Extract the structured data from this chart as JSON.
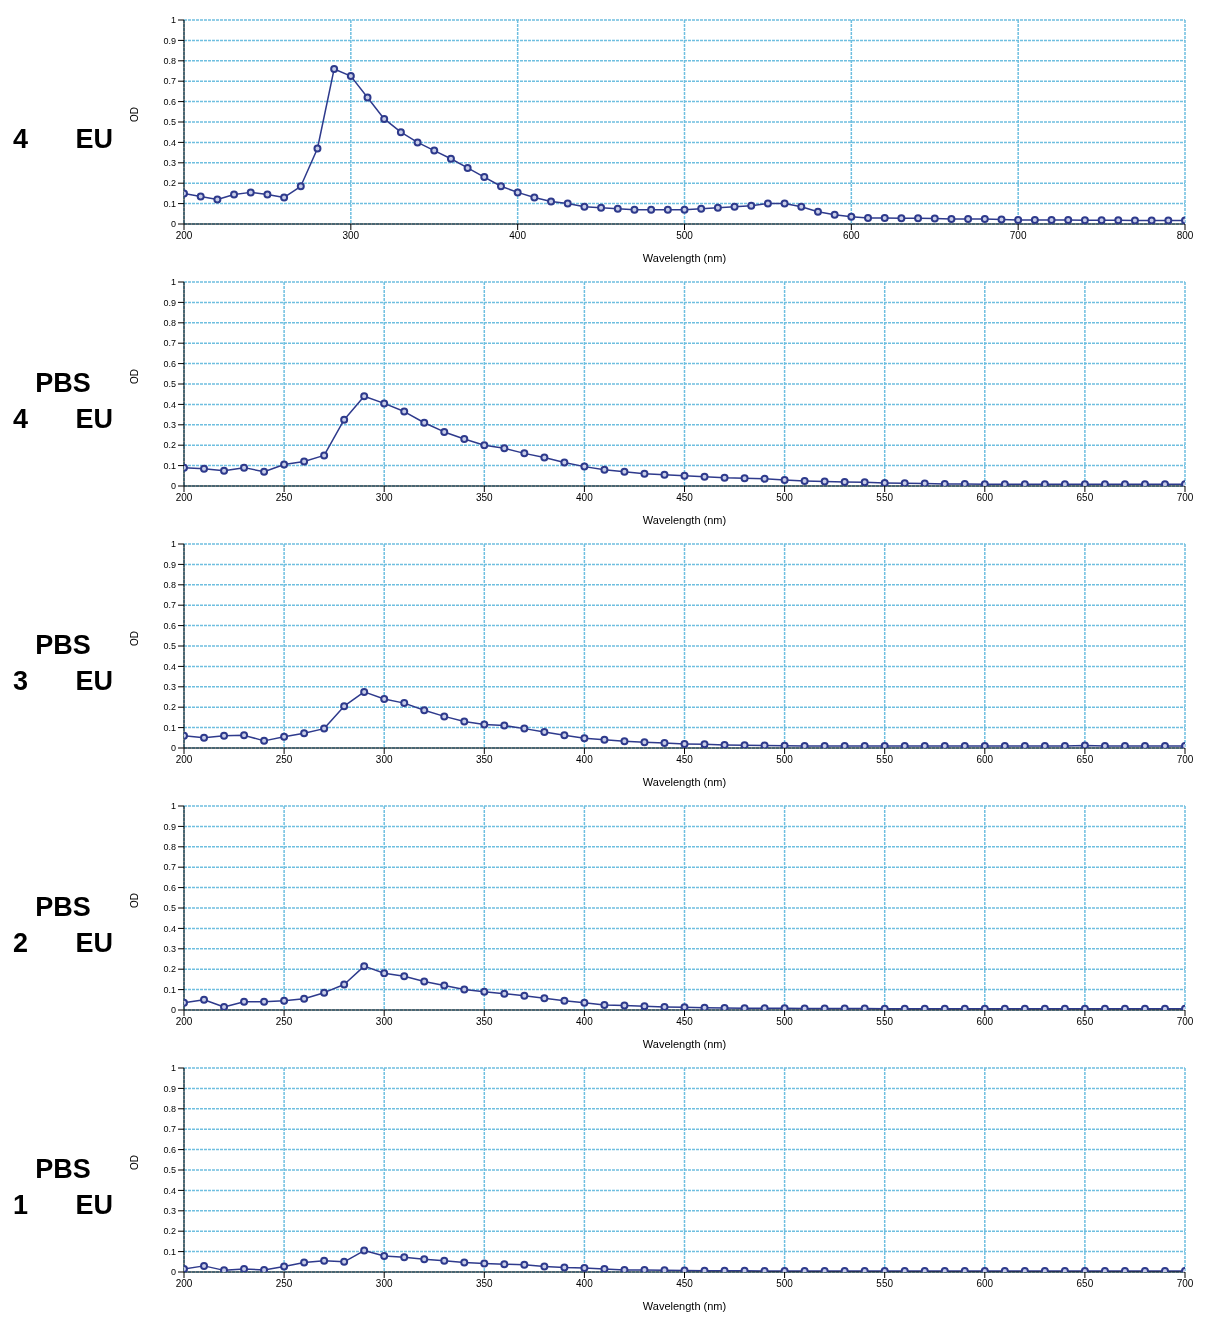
{
  "chart_data": [
    {
      "type": "line",
      "title": "4 EU",
      "xlabel": "Wavelength (nm)",
      "ylabel": "OD",
      "marker": "circle",
      "grid": true,
      "xlim": [
        200,
        800
      ],
      "xticks": [
        200,
        300,
        400,
        500,
        600,
        700,
        800
      ],
      "ylim": [
        0,
        1
      ],
      "yticks": [
        0,
        0.1,
        0.2,
        0.3,
        0.4,
        0.5,
        0.6,
        0.7,
        0.8,
        0.9,
        1
      ],
      "x": [
        200,
        210,
        220,
        230,
        240,
        250,
        260,
        270,
        280,
        290,
        300,
        310,
        320,
        330,
        340,
        350,
        360,
        370,
        380,
        390,
        400,
        410,
        420,
        430,
        440,
        450,
        460,
        470,
        480,
        490,
        500,
        510,
        520,
        530,
        540,
        550,
        560,
        570,
        580,
        590,
        600,
        610,
        620,
        630,
        640,
        650,
        660,
        670,
        680,
        690,
        700,
        710,
        720,
        730,
        740,
        750,
        760,
        770,
        780,
        790,
        800
      ],
      "series": [
        {
          "color": "#2e3a8c",
          "values": [
            0.15,
            0.135,
            0.12,
            0.145,
            0.155,
            0.145,
            0.13,
            0.185,
            0.37,
            0.76,
            0.725,
            0.62,
            0.515,
            0.45,
            0.4,
            0.36,
            0.32,
            0.275,
            0.23,
            0.185,
            0.155,
            0.13,
            0.11,
            0.1,
            0.085,
            0.08,
            0.075,
            0.07,
            0.07,
            0.07,
            0.07,
            0.075,
            0.08,
            0.085,
            0.09,
            0.1,
            0.1,
            0.085,
            0.06,
            0.045,
            0.035,
            0.03,
            0.03,
            0.028,
            0.028,
            0.027,
            0.025,
            0.025,
            0.024,
            0.022,
            0.02,
            0.02,
            0.02,
            0.02,
            0.018,
            0.018,
            0.018,
            0.017,
            0.017,
            0.017,
            0.017
          ]
        }
      ]
    },
    {
      "type": "line",
      "title": "PBS 4 EU",
      "xlabel": "Wavelength (nm)",
      "ylabel": "OD",
      "marker": "circle",
      "grid": true,
      "xlim": [
        200,
        700
      ],
      "xticks": [
        200,
        250,
        300,
        350,
        400,
        450,
        500,
        550,
        600,
        650,
        700
      ],
      "ylim": [
        0,
        1
      ],
      "yticks": [
        0,
        0.1,
        0.2,
        0.3,
        0.4,
        0.5,
        0.6,
        0.7,
        0.8,
        0.9,
        1
      ],
      "x": [
        200,
        210,
        220,
        230,
        240,
        250,
        260,
        270,
        280,
        290,
        300,
        310,
        320,
        330,
        340,
        350,
        360,
        370,
        380,
        390,
        400,
        410,
        420,
        430,
        440,
        450,
        460,
        470,
        480,
        490,
        500,
        510,
        520,
        530,
        540,
        550,
        560,
        570,
        580,
        590,
        600,
        610,
        620,
        630,
        640,
        650,
        660,
        670,
        680,
        690,
        700
      ],
      "series": [
        {
          "color": "#2e3a8c",
          "values": [
            0.09,
            0.085,
            0.075,
            0.09,
            0.07,
            0.105,
            0.12,
            0.15,
            0.325,
            0.44,
            0.405,
            0.365,
            0.31,
            0.265,
            0.23,
            0.2,
            0.185,
            0.16,
            0.14,
            0.115,
            0.095,
            0.08,
            0.07,
            0.06,
            0.055,
            0.05,
            0.045,
            0.04,
            0.038,
            0.035,
            0.03,
            0.025,
            0.022,
            0.02,
            0.018,
            0.015,
            0.013,
            0.012,
            0.01,
            0.01,
            0.009,
            0.009,
            0.009,
            0.008,
            0.008,
            0.008,
            0.008,
            0.008,
            0.008,
            0.008,
            0.008
          ]
        }
      ]
    },
    {
      "type": "line",
      "title": "PBS 3 EU",
      "xlabel": "Wavelength (nm)",
      "ylabel": "OD",
      "marker": "circle",
      "grid": true,
      "xlim": [
        200,
        700
      ],
      "xticks": [
        200,
        250,
        300,
        350,
        400,
        450,
        500,
        550,
        600,
        650,
        700
      ],
      "ylim": [
        0,
        1
      ],
      "yticks": [
        0,
        0.1,
        0.2,
        0.3,
        0.4,
        0.5,
        0.6,
        0.7,
        0.8,
        0.9,
        1
      ],
      "x": [
        200,
        210,
        220,
        230,
        240,
        250,
        260,
        270,
        280,
        290,
        300,
        310,
        320,
        330,
        340,
        350,
        360,
        370,
        380,
        390,
        400,
        410,
        420,
        430,
        440,
        450,
        460,
        470,
        480,
        490,
        500,
        510,
        520,
        530,
        540,
        550,
        560,
        570,
        580,
        590,
        600,
        610,
        620,
        630,
        640,
        650,
        660,
        670,
        680,
        690,
        700
      ],
      "series": [
        {
          "color": "#2e3a8c",
          "values": [
            0.06,
            0.05,
            0.06,
            0.062,
            0.035,
            0.055,
            0.072,
            0.095,
            0.205,
            0.275,
            0.24,
            0.22,
            0.185,
            0.155,
            0.13,
            0.115,
            0.11,
            0.095,
            0.078,
            0.062,
            0.048,
            0.04,
            0.033,
            0.028,
            0.024,
            0.02,
            0.018,
            0.015,
            0.013,
            0.012,
            0.011,
            0.01,
            0.01,
            0.01,
            0.01,
            0.01,
            0.01,
            0.01,
            0.01,
            0.01,
            0.01,
            0.01,
            0.01,
            0.01,
            0.01,
            0.012,
            0.01,
            0.01,
            0.01,
            0.01,
            0.01
          ]
        }
      ]
    },
    {
      "type": "line",
      "title": "PBS 2 EU",
      "xlabel": "Wavelength (nm)",
      "ylabel": "OD",
      "marker": "circle",
      "grid": true,
      "xlim": [
        200,
        700
      ],
      "xticks": [
        200,
        250,
        300,
        350,
        400,
        450,
        500,
        550,
        600,
        650,
        700
      ],
      "ylim": [
        0,
        1
      ],
      "yticks": [
        0,
        0.1,
        0.2,
        0.3,
        0.4,
        0.5,
        0.6,
        0.7,
        0.8,
        0.9,
        1
      ],
      "x": [
        200,
        210,
        220,
        230,
        240,
        250,
        260,
        270,
        280,
        290,
        300,
        310,
        320,
        330,
        340,
        350,
        360,
        370,
        380,
        390,
        400,
        410,
        420,
        430,
        440,
        450,
        460,
        470,
        480,
        490,
        500,
        510,
        520,
        530,
        540,
        550,
        560,
        570,
        580,
        590,
        600,
        610,
        620,
        630,
        640,
        650,
        660,
        670,
        680,
        690,
        700
      ],
      "series": [
        {
          "color": "#2e3a8c",
          "values": [
            0.035,
            0.05,
            0.015,
            0.04,
            0.04,
            0.045,
            0.055,
            0.085,
            0.125,
            0.215,
            0.18,
            0.165,
            0.14,
            0.12,
            0.1,
            0.09,
            0.08,
            0.07,
            0.058,
            0.045,
            0.035,
            0.025,
            0.022,
            0.018,
            0.015,
            0.013,
            0.011,
            0.01,
            0.009,
            0.008,
            0.008,
            0.007,
            0.007,
            0.007,
            0.007,
            0.006,
            0.006,
            0.006,
            0.006,
            0.006,
            0.006,
            0.006,
            0.006,
            0.006,
            0.006,
            0.006,
            0.006,
            0.006,
            0.006,
            0.006,
            0.006
          ]
        }
      ]
    },
    {
      "type": "line",
      "title": "PBS 1 EU",
      "xlabel": "Wavelength (nm)",
      "ylabel": "OD",
      "marker": "circle",
      "grid": true,
      "xlim": [
        200,
        700
      ],
      "xticks": [
        200,
        250,
        300,
        350,
        400,
        450,
        500,
        550,
        600,
        650,
        700
      ],
      "ylim": [
        0,
        1
      ],
      "yticks": [
        0,
        0.1,
        0.2,
        0.3,
        0.4,
        0.5,
        0.6,
        0.7,
        0.8,
        0.9,
        1
      ],
      "x": [
        200,
        210,
        220,
        230,
        240,
        250,
        260,
        270,
        280,
        290,
        300,
        310,
        320,
        330,
        340,
        350,
        360,
        370,
        380,
        390,
        400,
        410,
        420,
        430,
        440,
        450,
        460,
        470,
        480,
        490,
        500,
        510,
        520,
        530,
        540,
        550,
        560,
        570,
        580,
        590,
        600,
        610,
        620,
        630,
        640,
        650,
        660,
        670,
        680,
        690,
        700
      ],
      "series": [
        {
          "color": "#2e3a8c",
          "values": [
            0.015,
            0.03,
            0.008,
            0.015,
            0.01,
            0.027,
            0.047,
            0.055,
            0.05,
            0.105,
            0.078,
            0.072,
            0.062,
            0.055,
            0.047,
            0.042,
            0.038,
            0.035,
            0.027,
            0.022,
            0.02,
            0.015,
            0.01,
            0.01,
            0.008,
            0.007,
            0.006,
            0.006,
            0.006,
            0.005,
            0.005,
            0.005,
            0.005,
            0.005,
            0.005,
            0.005,
            0.005,
            0.005,
            0.005,
            0.005,
            0.005,
            0.005,
            0.005,
            0.005,
            0.005,
            0.005,
            0.005,
            0.005,
            0.005,
            0.005,
            0.005
          ]
        }
      ]
    }
  ]
}
